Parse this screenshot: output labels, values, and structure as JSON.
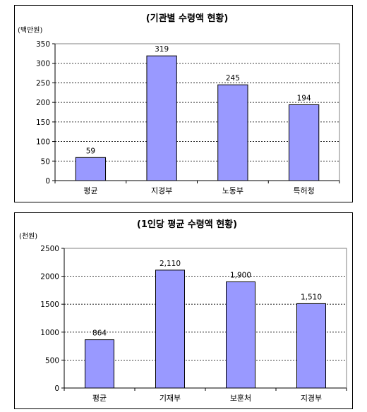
{
  "colors": {
    "bar_fill": "#9999ff",
    "bar_stroke": "#000000",
    "grid": "#000000",
    "background": "#ffffff"
  },
  "chart_data": [
    {
      "type": "bar",
      "title": "(기관별 수령액 현황)",
      "ylabel": "(백만원)",
      "categories": [
        "평균",
        "지경부",
        "노동부",
        "특허청"
      ],
      "values": [
        59,
        319,
        245,
        194
      ],
      "value_labels": [
        "59",
        "319",
        "245",
        "194"
      ],
      "ylim": [
        0,
        350
      ],
      "yticks": [
        0,
        50,
        100,
        150,
        200,
        250,
        300,
        350
      ],
      "grid": true,
      "legend": "none"
    },
    {
      "type": "bar",
      "title": "(1인당 평균 수령액 현황)",
      "ylabel": "(천원)",
      "categories": [
        "평균",
        "기재부",
        "보훈처",
        "지경부"
      ],
      "values": [
        864,
        2110,
        1900,
        1510
      ],
      "value_labels": [
        "864",
        "2,110",
        "1,900",
        "1,510"
      ],
      "ylim": [
        0,
        2500
      ],
      "yticks": [
        0,
        500,
        1000,
        1500,
        2000,
        2500
      ],
      "grid": true,
      "legend": "none"
    }
  ]
}
